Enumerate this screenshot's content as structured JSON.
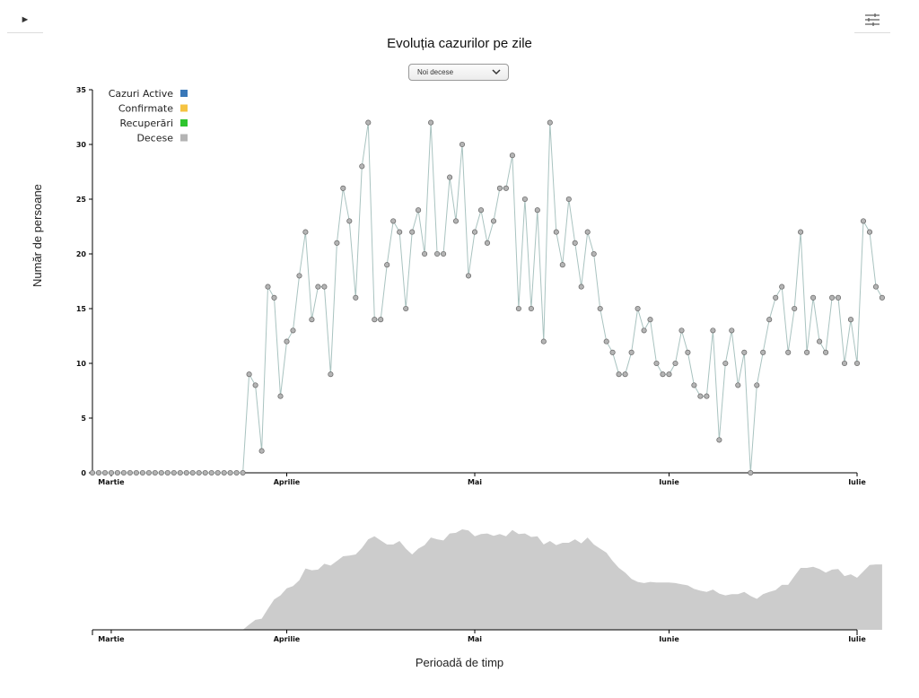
{
  "controls": {
    "play_label": "►",
    "settings_icon": "sliders-icon"
  },
  "header": {
    "title": "Evoluția cazurilor pe zile"
  },
  "dropdown": {
    "selected": "Noi decese"
  },
  "colors": {
    "active": "#3a78b8",
    "confirmed": "#f5c342",
    "recovered": "#2ec42e",
    "deaths": "#b4b4b4",
    "line": "#a9c3c0",
    "area": "#cccccc"
  },
  "legend": [
    {
      "label": "Cazuri Active",
      "color": "#3a78b8"
    },
    {
      "label": "Confirmate",
      "color": "#f5c342"
    },
    {
      "label": "Recuperări",
      "color": "#2ec42e"
    },
    {
      "label": "Decese",
      "color": "#b4b4b4"
    }
  ],
  "chart_data": {
    "type": "line",
    "title": "Evoluția cazurilor pe zile",
    "xlabel": "Perioadă de timp",
    "ylabel": "Număr de persoane",
    "ylim": [
      0,
      35
    ],
    "yticks": [
      0,
      5,
      10,
      15,
      20,
      25,
      30,
      35
    ],
    "x_start": "2020-03-01",
    "x_end": "2020-07-01",
    "xtick_labels": [
      {
        "date": "2020-03-04",
        "label": "Martie"
      },
      {
        "date": "2020-04-01",
        "label": "Aprilie"
      },
      {
        "date": "2020-05-01",
        "label": "Mai"
      },
      {
        "date": "2020-06-01",
        "label": "Iunie"
      },
      {
        "date": "2020-07-01",
        "label": "Iulie"
      }
    ],
    "series": [
      {
        "name": "Decese",
        "start_date": "2020-03-01",
        "values": [
          0,
          0,
          0,
          0,
          0,
          0,
          0,
          0,
          0,
          0,
          0,
          0,
          0,
          0,
          0,
          0,
          0,
          0,
          0,
          0,
          0,
          0,
          0,
          0,
          0,
          9,
          8,
          2,
          17,
          16,
          7,
          12,
          13,
          18,
          22,
          14,
          17,
          17,
          9,
          21,
          26,
          23,
          16,
          28,
          32,
          14,
          14,
          19,
          23,
          22,
          15,
          22,
          24,
          20,
          32,
          20,
          20,
          27,
          23,
          30,
          18,
          22,
          24,
          21,
          23,
          26,
          26,
          29,
          15,
          25,
          15,
          24,
          12,
          32,
          22,
          19,
          25,
          21,
          17,
          22,
          20,
          15,
          12,
          11,
          9,
          9,
          11,
          15,
          13,
          14,
          10,
          9,
          9,
          10,
          13,
          11,
          8,
          7,
          7,
          13,
          3,
          10,
          13,
          8,
          11,
          0,
          8,
          11,
          14,
          16,
          17,
          11,
          15,
          22,
          11,
          16,
          12,
          11,
          16,
          16,
          10,
          14,
          10,
          23,
          22,
          17,
          16
        ]
      }
    ],
    "overview_xtick_labels": [
      "Martie",
      "Aprilie",
      "Mai",
      "Iunie",
      "Iulie"
    ]
  }
}
